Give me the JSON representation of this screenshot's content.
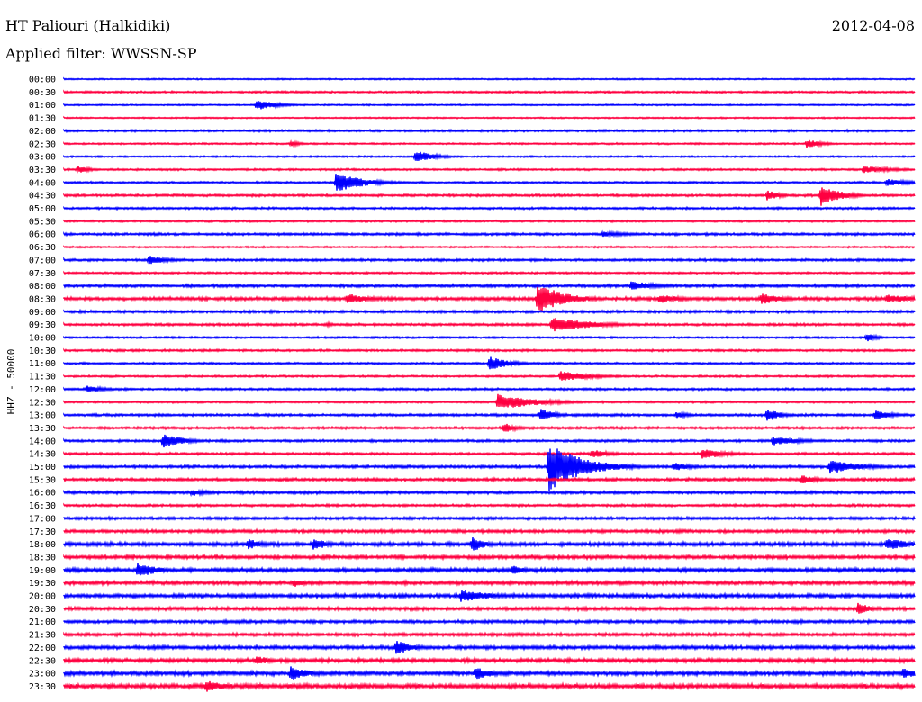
{
  "header": {
    "station": "HT Paliouri (Halkidiki)",
    "date": "2012-04-08",
    "filter": "Applied filter: WWSSN-SP"
  },
  "chart_data": {
    "type": "line",
    "title": "HT Paliouri (Halkidiki)",
    "date": "2012-04-08",
    "filter_label": "Applied filter: WWSSN-SP",
    "ylabel": "HHZ - 50000",
    "xlabel": "",
    "row_interval_minutes": 30,
    "row_colors": [
      "#0000ff",
      "#ff0040"
    ],
    "rows": [
      "00:00",
      "00:30",
      "01:00",
      "01:30",
      "02:00",
      "02:30",
      "03:00",
      "03:30",
      "04:00",
      "04:30",
      "05:00",
      "05:30",
      "06:00",
      "06:30",
      "07:00",
      "07:30",
      "08:00",
      "08:30",
      "09:00",
      "09:30",
      "10:00",
      "10:30",
      "11:00",
      "11:30",
      "12:00",
      "12:30",
      "13:00",
      "13:30",
      "14:00",
      "14:30",
      "15:00",
      "15:30",
      "16:00",
      "16:30",
      "17:00",
      "17:30",
      "18:00",
      "18:30",
      "19:00",
      "19:30",
      "20:00",
      "20:30",
      "21:00",
      "21:30",
      "22:00",
      "22:30",
      "23:00",
      "23:30"
    ],
    "row_noise_levels": [
      0.6,
      0.8,
      0.6,
      0.6,
      0.9,
      0.7,
      0.7,
      0.8,
      0.8,
      1.0,
      0.9,
      0.8,
      1.0,
      0.7,
      1.0,
      0.8,
      1.2,
      1.4,
      1.1,
      1.0,
      0.8,
      0.9,
      0.8,
      0.8,
      0.9,
      0.8,
      1.0,
      1.0,
      1.0,
      1.0,
      1.2,
      1.2,
      1.2,
      1.0,
      1.2,
      1.3,
      1.6,
      1.5,
      1.6,
      1.5,
      1.6,
      1.4,
      1.3,
      1.3,
      1.5,
      1.6,
      1.7,
      1.9
    ],
    "events": [
      {
        "row": "01:00",
        "minute": 6.8,
        "amp": 6,
        "dur": 1.5
      },
      {
        "row": "02:30",
        "minute": 26.2,
        "amp": 5,
        "dur": 1.2
      },
      {
        "row": "02:30",
        "minute": 8.0,
        "amp": 3,
        "dur": 0.8
      },
      {
        "row": "03:00",
        "minute": 12.4,
        "amp": 7,
        "dur": 1.5
      },
      {
        "row": "03:30",
        "minute": 0.5,
        "amp": 4,
        "dur": 1.0
      },
      {
        "row": "03:30",
        "minute": 28.2,
        "amp": 4,
        "dur": 2.5
      },
      {
        "row": "04:00",
        "minute": 9.6,
        "amp": 12,
        "dur": 2.0
      },
      {
        "row": "04:00",
        "minute": 29.0,
        "amp": 4,
        "dur": 2.0
      },
      {
        "row": "04:30",
        "minute": 24.8,
        "amp": 6,
        "dur": 1.0
      },
      {
        "row": "04:30",
        "minute": 26.7,
        "amp": 12,
        "dur": 1.5
      },
      {
        "row": "06:00",
        "minute": 19.0,
        "amp": 3,
        "dur": 2.5
      },
      {
        "row": "07:00",
        "minute": 3.0,
        "amp": 5,
        "dur": 1.5
      },
      {
        "row": "08:00",
        "minute": 20.0,
        "amp": 5,
        "dur": 2.5
      },
      {
        "row": "08:30",
        "minute": 10.0,
        "amp": 6,
        "dur": 2.0
      },
      {
        "row": "08:30",
        "minute": 16.7,
        "amp": 18,
        "dur": 2.0
      },
      {
        "row": "08:30",
        "minute": 21.0,
        "amp": 5,
        "dur": 2.0
      },
      {
        "row": "08:30",
        "minute": 24.6,
        "amp": 7,
        "dur": 1.5
      },
      {
        "row": "08:30",
        "minute": 29.0,
        "amp": 5,
        "dur": 2.5
      },
      {
        "row": "09:30",
        "minute": 9.3,
        "amp": 3,
        "dur": 0.5
      },
      {
        "row": "09:30",
        "minute": 17.2,
        "amp": 9,
        "dur": 3.0
      },
      {
        "row": "10:00",
        "minute": 28.3,
        "amp": 5,
        "dur": 0.8
      },
      {
        "row": "11:00",
        "minute": 15.0,
        "amp": 8,
        "dur": 1.5
      },
      {
        "row": "11:30",
        "minute": 17.5,
        "amp": 6,
        "dur": 2.5
      },
      {
        "row": "12:00",
        "minute": 0.8,
        "amp": 4,
        "dur": 1.5
      },
      {
        "row": "12:30",
        "minute": 15.3,
        "amp": 9,
        "dur": 3.0
      },
      {
        "row": "13:00",
        "minute": 16.8,
        "amp": 8,
        "dur": 1.0
      },
      {
        "row": "13:00",
        "minute": 21.6,
        "amp": 4,
        "dur": 1.0
      },
      {
        "row": "13:00",
        "minute": 24.8,
        "amp": 8,
        "dur": 1.0
      },
      {
        "row": "13:00",
        "minute": 28.6,
        "amp": 5,
        "dur": 1.5
      },
      {
        "row": "13:30",
        "minute": 15.5,
        "amp": 6,
        "dur": 1.0
      },
      {
        "row": "14:00",
        "minute": 3.5,
        "amp": 9,
        "dur": 1.5
      },
      {
        "row": "14:00",
        "minute": 25.0,
        "amp": 5,
        "dur": 2.5
      },
      {
        "row": "14:30",
        "minute": 18.6,
        "amp": 5,
        "dur": 1.5
      },
      {
        "row": "14:30",
        "minute": 22.5,
        "amp": 6,
        "dur": 2.0
      },
      {
        "row": "15:00",
        "minute": 17.1,
        "amp": 28,
        "dur": 2.5
      },
      {
        "row": "15:00",
        "minute": 21.5,
        "amp": 5,
        "dur": 1.5
      },
      {
        "row": "15:00",
        "minute": 27.0,
        "amp": 8,
        "dur": 2.5
      },
      {
        "row": "15:30",
        "minute": 26.0,
        "amp": 5,
        "dur": 1.5
      },
      {
        "row": "16:00",
        "minute": 4.5,
        "amp": 4,
        "dur": 1.5
      },
      {
        "row": "18:00",
        "minute": 6.5,
        "amp": 7,
        "dur": 1.0
      },
      {
        "row": "18:00",
        "minute": 8.8,
        "amp": 8,
        "dur": 1.0
      },
      {
        "row": "18:00",
        "minute": 14.4,
        "amp": 9,
        "dur": 1.0
      },
      {
        "row": "18:00",
        "minute": 29.0,
        "amp": 7,
        "dur": 2.0
      },
      {
        "row": "19:00",
        "minute": 2.6,
        "amp": 9,
        "dur": 1.5
      },
      {
        "row": "19:00",
        "minute": 15.8,
        "amp": 6,
        "dur": 1.0
      },
      {
        "row": "19:30",
        "minute": 8.1,
        "amp": 5,
        "dur": 1.0
      },
      {
        "row": "20:00",
        "minute": 14.0,
        "amp": 7,
        "dur": 2.5
      },
      {
        "row": "20:30",
        "minute": 28.0,
        "amp": 7,
        "dur": 1.0
      },
      {
        "row": "22:00",
        "minute": 11.7,
        "amp": 8,
        "dur": 1.5
      },
      {
        "row": "22:30",
        "minute": 6.8,
        "amp": 6,
        "dur": 1.0
      },
      {
        "row": "23:00",
        "minute": 8.0,
        "amp": 8,
        "dur": 1.5
      },
      {
        "row": "23:00",
        "minute": 14.5,
        "amp": 7,
        "dur": 1.5
      },
      {
        "row": "23:00",
        "minute": 29.6,
        "amp": 6,
        "dur": 1.5
      },
      {
        "row": "23:30",
        "minute": 5.0,
        "amp": 7,
        "dur": 1.5
      }
    ]
  }
}
